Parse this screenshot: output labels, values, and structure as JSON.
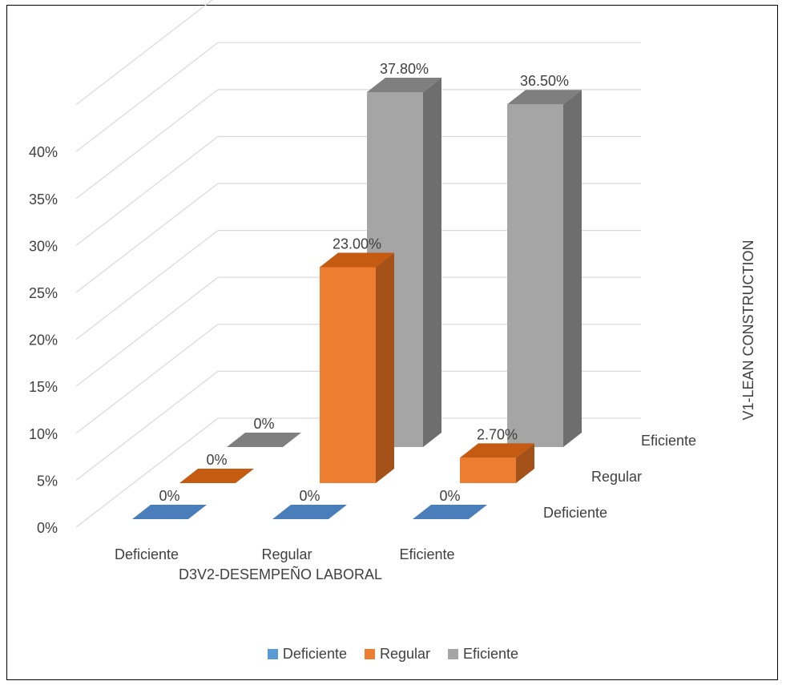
{
  "chart_data": {
    "type": "bar",
    "subtype": "3d-clustered-column",
    "x_axis": {
      "label": "D3V2-DESEMPEÑO LABORAL",
      "categories": [
        "Deficiente",
        "Regular",
        "Eficiente"
      ]
    },
    "depth_axis": {
      "label": "V1-LEAN CONSTRUCTION",
      "categories": [
        "Deficiente",
        "Regular",
        "Eficiente"
      ]
    },
    "y_axis": {
      "ticks": [
        "0%",
        "5%",
        "10%",
        "15%",
        "20%",
        "25%",
        "30%",
        "35%",
        "40%"
      ],
      "ylim": [
        0,
        40
      ]
    },
    "series": [
      {
        "name": "Deficiente",
        "color": "#4a7ebb",
        "values": [
          0,
          0,
          0
        ],
        "labels": [
          "0%",
          "0%",
          "0%"
        ]
      },
      {
        "name": "Regular",
        "color": "#ed7d31",
        "values": [
          0,
          23.0,
          2.7
        ],
        "labels": [
          "0%",
          "23.00%",
          "2.70%"
        ]
      },
      {
        "name": "Eficiente",
        "color": "#a5a5a5",
        "values": [
          0,
          37.8,
          36.5
        ],
        "labels": [
          "0%",
          "37.80%",
          "36.50%"
        ]
      }
    ],
    "grid": true,
    "legend_position": "bottom"
  }
}
